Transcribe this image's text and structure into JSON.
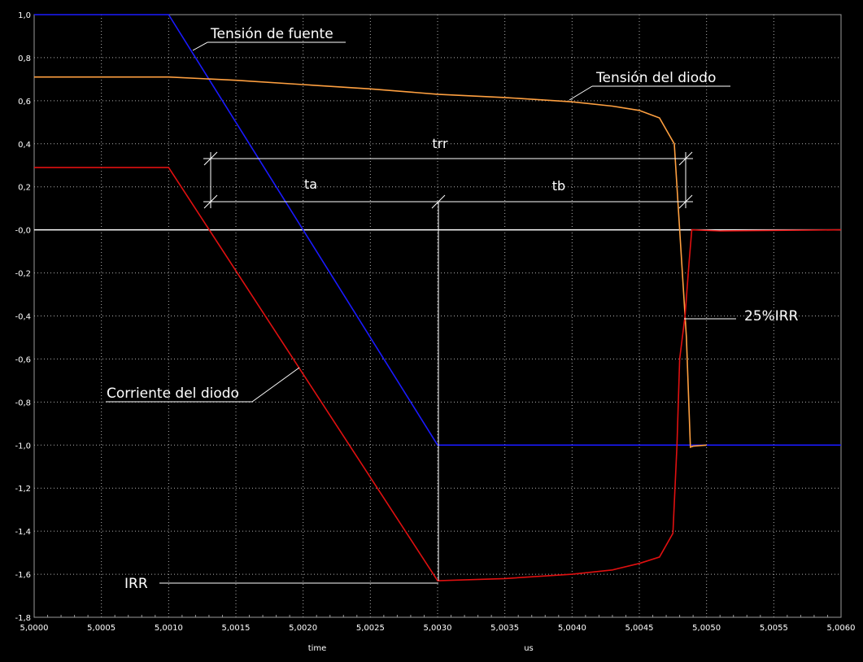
{
  "chart_data": {
    "type": "line",
    "xlabel": "time",
    "xunit": "us",
    "xlim": [
      5.0,
      5.006
    ],
    "ylim": [
      -1.8,
      1.0
    ],
    "grid": true,
    "x_ticks": [
      "5,0000",
      "5,0005",
      "5,0010",
      "5,0015",
      "5,0020",
      "5,0025",
      "5,0030",
      "5,0035",
      "5,0040",
      "5,0045",
      "5,0050",
      "5,0055",
      "5,0060"
    ],
    "y_ticks": [
      "1,0",
      "0,8",
      "0,6",
      "0,4",
      "0,2",
      "-0,0",
      "-0,2",
      "-0,4",
      "-0,6",
      "-0,8",
      "-1,0",
      "-1,2",
      "-1,4",
      "-1,6",
      "-1,8"
    ],
    "series": [
      {
        "name": "Tensión de fuente",
        "color": "#1a1aff",
        "points": [
          [
            5.0,
            1.0
          ],
          [
            5.001,
            1.0
          ],
          [
            5.003,
            -1.0
          ],
          [
            5.006,
            -1.0
          ]
        ]
      },
      {
        "name": "Tensión del diodo",
        "color": "#ffa040",
        "points": [
          [
            5.0,
            0.71
          ],
          [
            5.001,
            0.71
          ],
          [
            5.0015,
            0.695
          ],
          [
            5.002,
            0.675
          ],
          [
            5.0025,
            0.655
          ],
          [
            5.003,
            0.63
          ],
          [
            5.0035,
            0.615
          ],
          [
            5.004,
            0.595
          ],
          [
            5.0043,
            0.575
          ],
          [
            5.0045,
            0.555
          ],
          [
            5.00465,
            0.52
          ],
          [
            5.00476,
            0.4
          ],
          [
            5.0048,
            0.0
          ],
          [
            5.00485,
            -0.5
          ],
          [
            5.00488,
            -1.01
          ],
          [
            5.0049,
            -1.005
          ],
          [
            5.005,
            -1.0
          ]
        ]
      },
      {
        "name": "Corriente del diodo",
        "color": "#e01010",
        "points": [
          [
            5.0,
            0.29
          ],
          [
            5.001,
            0.29
          ],
          [
            5.003,
            -1.63
          ],
          [
            5.0035,
            -1.62
          ],
          [
            5.004,
            -1.6
          ],
          [
            5.0043,
            -1.58
          ],
          [
            5.0045,
            -1.55
          ],
          [
            5.00465,
            -1.52
          ],
          [
            5.00475,
            -1.41
          ],
          [
            5.00478,
            -1.0
          ],
          [
            5.0048,
            -0.6
          ],
          [
            5.00484,
            -0.4
          ],
          [
            5.00487,
            -0.15
          ],
          [
            5.00489,
            0.0
          ],
          [
            5.0051,
            -0.005
          ],
          [
            5.006,
            0.0
          ]
        ]
      }
    ],
    "annotations": {
      "fuente_label": "Tensión de fuente",
      "diodo_v_label": "Tensión del diodo",
      "diodo_i_label": "Corriente del diodo",
      "trr": "trr",
      "ta": "ta",
      "tb": "tb",
      "irr": "IRR",
      "irr25": "25%IRR"
    }
  }
}
